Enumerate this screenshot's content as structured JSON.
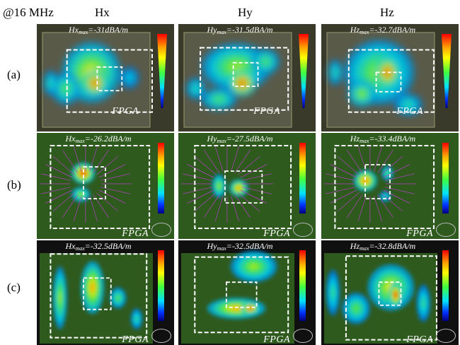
{
  "frequency_label": "@16 MHz",
  "columns": [
    "Hx",
    "Hy",
    "Hz"
  ],
  "rows": [
    "(a)",
    "(b)",
    "(c)"
  ],
  "panels": [
    [
      {
        "prefix": "Hx",
        "sub": "max",
        "value": "=-31dBA/m",
        "label": "FPGA"
      },
      {
        "prefix": "Hy",
        "sub": "max",
        "value": "=-31.5dBA/m",
        "label": "FPGA"
      },
      {
        "prefix": "Hz",
        "sub": "max",
        "value": "=-32.7dBA/m",
        "label": "FPGA"
      }
    ],
    [
      {
        "prefix": "Hx",
        "sub": "max",
        "value": "=-26.2dBA/m",
        "label": "FPGA"
      },
      {
        "prefix": "Hy",
        "sub": "max",
        "value": "=-27.5dBA/m",
        "label": "FPGA"
      },
      {
        "prefix": "Hz",
        "sub": "max",
        "value": "=-33.4dBA/m",
        "label": "FPGA"
      }
    ],
    [
      {
        "prefix": "Hx",
        "sub": "max",
        "value": "=-32.5dBA/m",
        "label": "FPGA"
      },
      {
        "prefix": "Hy",
        "sub": "max",
        "value": "=-32.5dBA/m",
        "label": "FPGA"
      },
      {
        "prefix": "Hz",
        "sub": "max",
        "value": "=-32.8dBA/m",
        "label": "FPGA"
      }
    ]
  ],
  "colors": {
    "row_a_background": "#3a3a2a",
    "row_b_background": "#2e5a1e",
    "row_c_background": "#2e5a1e",
    "frame": "#ffffff"
  }
}
